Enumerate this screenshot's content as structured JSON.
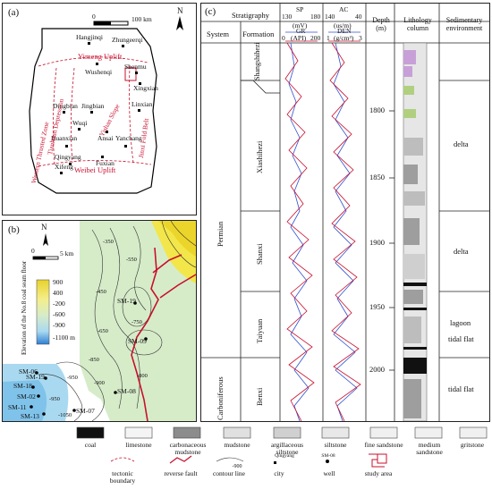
{
  "panel_a": {
    "label": "(a)",
    "scale_zero": "0",
    "scale_text": "100 km",
    "north": "N",
    "cities": [
      "Hangjinqi",
      "Zhungeerqi",
      "Shenmu",
      "Xingxian",
      "Wushenqi",
      "Jingbian",
      "Dingbian",
      "Linxian",
      "Wuqi",
      "Huanxian",
      "Ansai",
      "Yanchang",
      "Qingyang",
      "Fuxian",
      "Xifeng"
    ],
    "regions": [
      "Yimeng Uplift",
      "Western Thrusted Zone",
      "Tianhuan Depression",
      "Yishan Slope",
      "Jinxi Fold Belt",
      "Weibei Uplift"
    ]
  },
  "panel_b": {
    "label": "(b)",
    "north": "N",
    "scale_zero": "0",
    "scale_text": "5 km",
    "legend_title": "Elevation of the No.8 coal seam floor",
    "legend_values": [
      "900",
      "400",
      "-200",
      "-600",
      "-900",
      "-1100 m"
    ],
    "wells": [
      "SM-19",
      "SM-09",
      "SM-08",
      "SM-06",
      "SM-19",
      "SM-18",
      "SM-02",
      "SM-11",
      "SM-13",
      "SM-07"
    ],
    "contours": [
      "-350",
      "-450",
      "-550",
      "-650",
      "-750",
      "-850",
      "-950",
      "-950",
      "-1050",
      "-900",
      "-800"
    ]
  },
  "panel_c": {
    "label": "(c)",
    "hdr_stratigraphy": "Stratigraphy",
    "hdr_system": "System",
    "hdr_formation": "Formation",
    "sp_label": "SP",
    "sp_unit": "(mV)",
    "sp_range": [
      "130",
      "180"
    ],
    "gr_label": "GR",
    "gr_unit": "(API)",
    "gr_range": [
      "0",
      "200"
    ],
    "ac_label": "AC",
    "ac_unit": "(us/m)",
    "ac_range": [
      "140",
      "40"
    ],
    "den_label": "DEN",
    "den_unit": "(g/cm³)",
    "den_range": [
      "1",
      "3"
    ],
    "hdr_depth": "Depth (m)",
    "hdr_lithology": "Lithology column",
    "hdr_sed": "Sedimentary environment",
    "systems": [
      "Permian",
      "Carboniferous"
    ],
    "formations": [
      "Shangshihezi",
      "Xiashihezi",
      "Shanxi",
      "Taiyuan",
      "Benxi"
    ],
    "depths": [
      "1800",
      "1850",
      "1900",
      "1950",
      "2000"
    ],
    "environments": [
      "delta",
      "delta",
      "lagoon",
      "tidal flat",
      "tidal flat"
    ]
  },
  "legend": {
    "items": [
      {
        "label": "coal"
      },
      {
        "label": "limestone"
      },
      {
        "label": "carbonaceous mudstone"
      },
      {
        "label": "mudstone"
      },
      {
        "label": "argillaceous siltstone"
      },
      {
        "label": "siltstone"
      },
      {
        "label": "fine sandstone"
      },
      {
        "label": "medium sandstone"
      },
      {
        "label": "gritstone"
      }
    ],
    "symbols": [
      {
        "label": "tectonic boundary"
      },
      {
        "label": "reverse fault"
      },
      {
        "label": "contour line"
      },
      {
        "label": "city",
        "sample": "Qingyang"
      },
      {
        "label": "well",
        "sample": "SM-08"
      },
      {
        "label": "study area"
      }
    ],
    "contour_sample": "-900"
  },
  "colors": {
    "red": "#c8102e",
    "blue": "#3050d0",
    "coal": "#111111"
  }
}
